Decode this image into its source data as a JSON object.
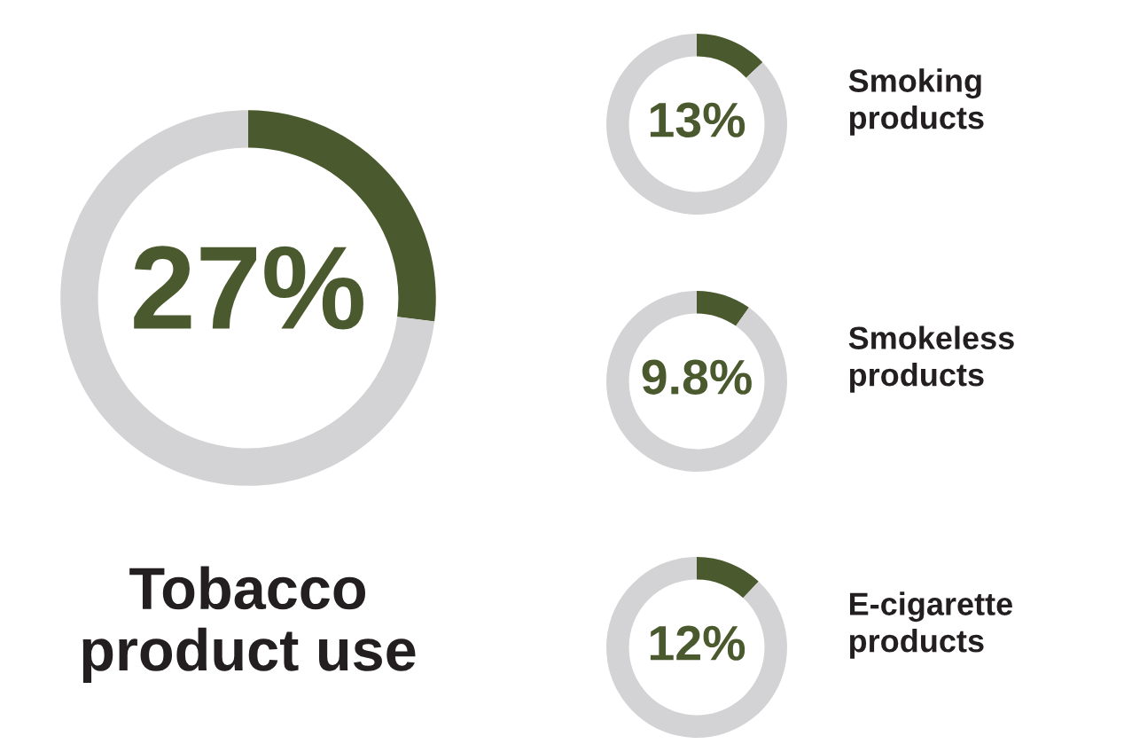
{
  "chart_data": [
    {
      "type": "donut",
      "title": "Tobacco\nproduct use",
      "categories": [
        null,
        null
      ],
      "values": [
        27,
        73
      ],
      "colors": [
        "#4b5a2e",
        "#d3d3d5"
      ],
      "value_labels": [
        "27%",
        null
      ]
    },
    {
      "type": "donut",
      "title": "Smoking\nproducts",
      "categories": [
        null,
        null
      ],
      "values": [
        13,
        87
      ],
      "colors": [
        "#4b5a2e",
        "#d3d3d5"
      ],
      "value_labels": [
        "13%",
        null
      ]
    },
    {
      "type": "donut",
      "title": "Smokeless\nproducts",
      "categories": [
        null,
        null
      ],
      "values": [
        9.8,
        90.2
      ],
      "colors": [
        "#4b5a2e",
        "#d3d3d5"
      ],
      "value_labels": [
        "9.8%",
        null
      ]
    },
    {
      "type": "donut",
      "title": "E-cigarette\nproducts",
      "categories": [
        null,
        null
      ],
      "values": [
        12,
        88
      ],
      "colors": [
        "#4b5a2e",
        "#d3d3d5"
      ],
      "value_labels": [
        "12%",
        null
      ]
    }
  ]
}
